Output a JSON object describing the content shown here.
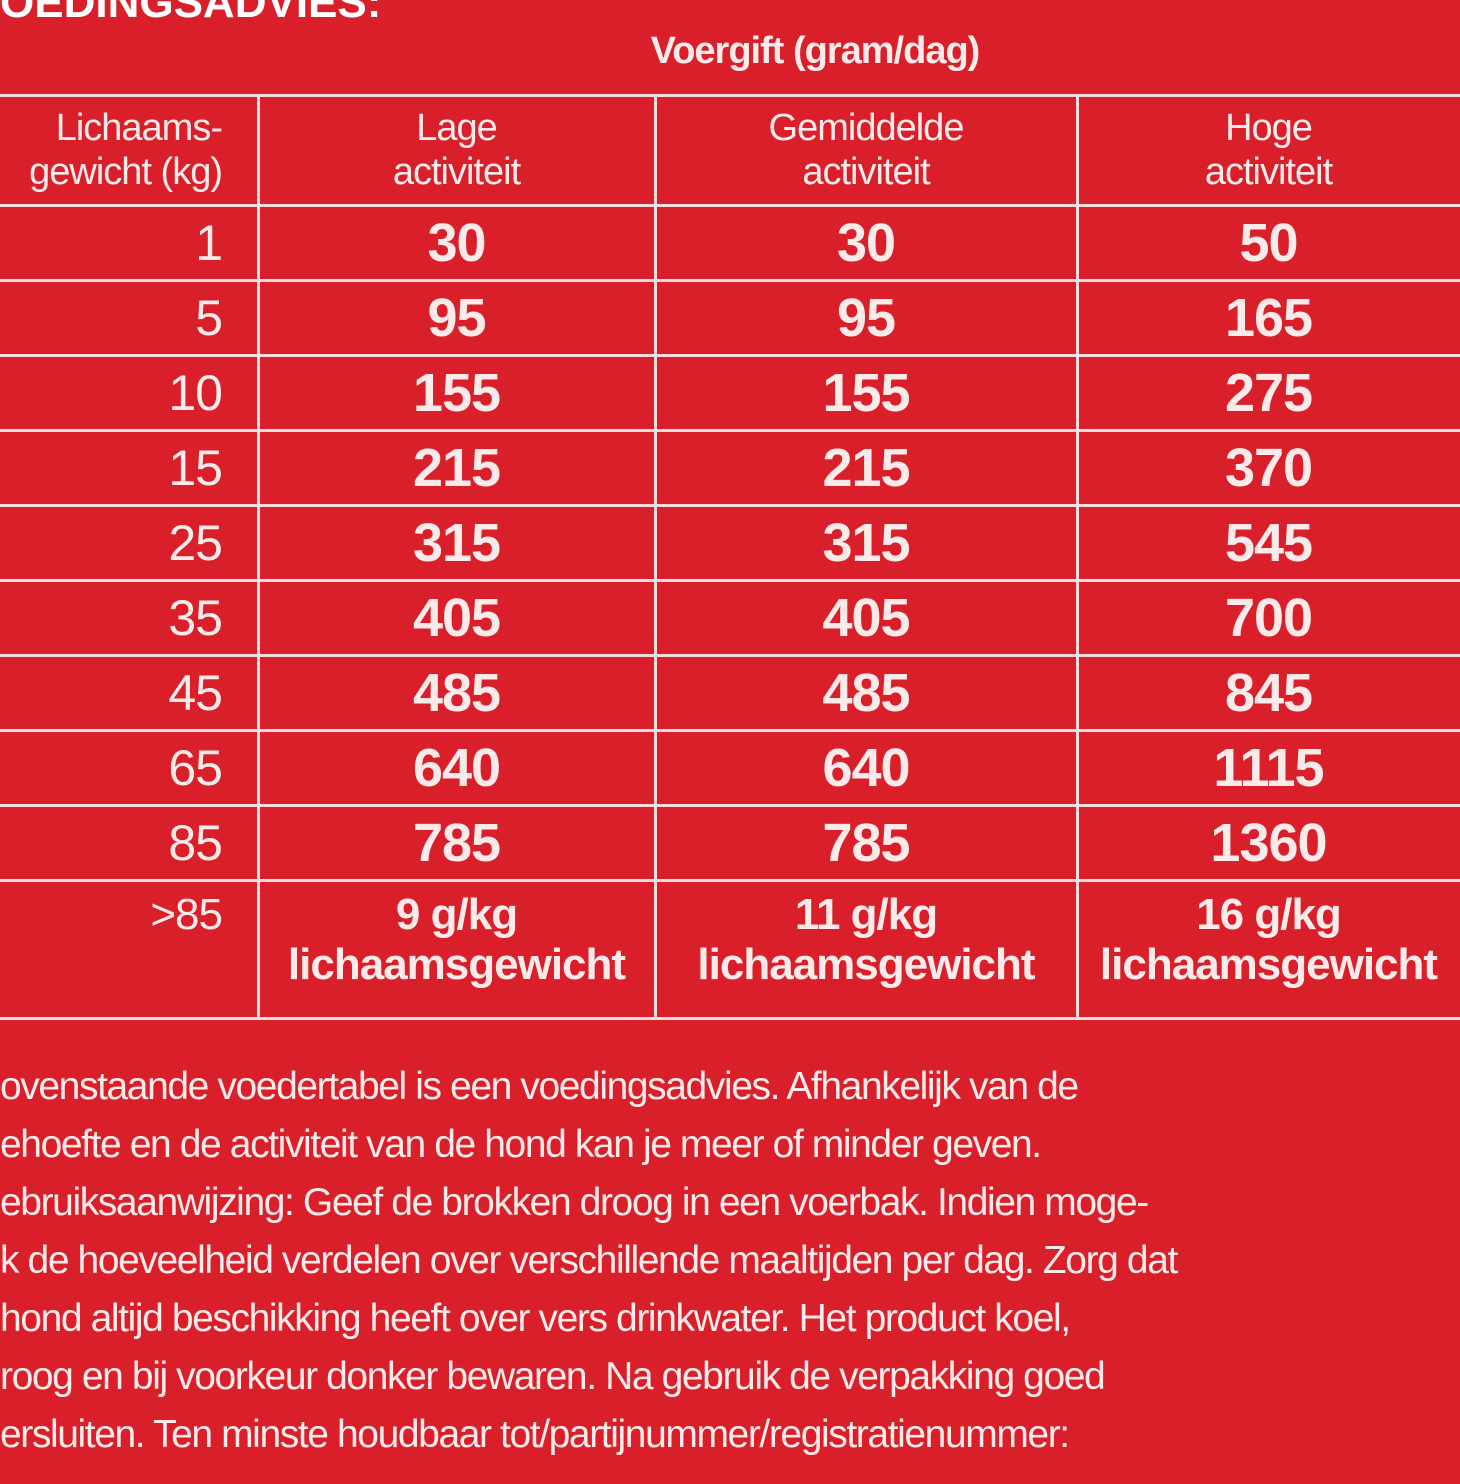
{
  "title": "OEDINGSADVIES:",
  "table": {
    "caption": "Voergift (gram/dag)",
    "header": [
      [
        "Lichaams-",
        "gewicht (kg)"
      ],
      [
        "Lage",
        "activiteit"
      ],
      [
        "Gemiddelde",
        "activiteit"
      ],
      [
        "Hoge",
        "activiteit"
      ]
    ],
    "rows": [
      [
        1,
        30,
        30,
        50
      ],
      [
        5,
        95,
        95,
        165
      ],
      [
        10,
        155,
        155,
        275
      ],
      [
        15,
        215,
        215,
        370
      ],
      [
        25,
        315,
        315,
        545
      ],
      [
        35,
        405,
        405,
        700
      ],
      [
        45,
        485,
        485,
        845
      ],
      [
        65,
        640,
        640,
        1115
      ],
      [
        85,
        785,
        785,
        1360
      ],
      [
        ">85",
        [
          "9 g/kg",
          "lichaamsgewicht"
        ],
        [
          "11 g/kg",
          "lichaamsgewicht"
        ],
        [
          "16 g/kg",
          "lichaamsgewicht"
        ]
      ]
    ]
  },
  "paragraph": [
    "ovenstaande voedertabel is een voedingsadvies. Afhankelijk van de",
    "ehoefte en de activiteit van de hond kan je meer of minder geven.",
    "ebruiksaanwijzing: Geef de brokken droog in een voerbak. Indien moge-",
    "k de hoeveelheid verdelen over verschillende maaltijden per dag. Zorg dat",
    " hond altijd beschikking heeft over vers drinkwater. Het product koel,",
    "roog en bij voorkeur donker bewaren. Na gebruik de verpakking goed",
    "ersluiten. Ten minste houdbaar tot/partijnummer/registratienummer:"
  ]
}
